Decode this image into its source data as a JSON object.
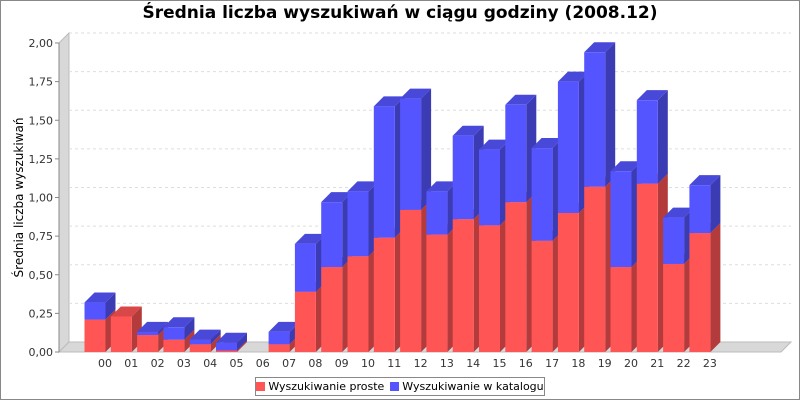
{
  "chart_data": {
    "type": "bar",
    "stacked": true,
    "style": "3d",
    "title": "Średnia liczba wyszukiwań w ciągu godziny (2008.12)",
    "xlabel": "",
    "ylabel": "Średnia liczba wyszukiwań",
    "ylim": [
      0,
      2.0
    ],
    "yticks": [
      "0,00",
      "0,25",
      "0,50",
      "0,75",
      "1,00",
      "1,25",
      "1,50",
      "1,75",
      "2,00"
    ],
    "grid": true,
    "legend_position": "bottom",
    "categories": [
      "00",
      "01",
      "02",
      "03",
      "04",
      "05",
      "06",
      "07",
      "08",
      "09",
      "10",
      "11",
      "12",
      "13",
      "14",
      "15",
      "16",
      "17",
      "18",
      "19",
      "20",
      "21",
      "22",
      "23"
    ],
    "series": [
      {
        "name": "Wyszukiwanie proste",
        "color": "#ff5555",
        "values": [
          0.21,
          0.23,
          0.11,
          0.08,
          0.05,
          0.01,
          0.0,
          0.05,
          0.39,
          0.55,
          0.62,
          0.74,
          0.92,
          0.76,
          0.86,
          0.82,
          0.97,
          0.72,
          0.9,
          1.07,
          0.55,
          1.09,
          0.57,
          0.77
        ]
      },
      {
        "name": "Wyszukiwanie w katalogu",
        "color": "#5555ff",
        "values": [
          0.11,
          0.0,
          0.02,
          0.08,
          0.03,
          0.05,
          0.0,
          0.08,
          0.31,
          0.42,
          0.42,
          0.85,
          0.72,
          0.28,
          0.54,
          0.49,
          0.63,
          0.6,
          0.85,
          0.87,
          0.62,
          0.54,
          0.3,
          0.31
        ]
      }
    ]
  }
}
